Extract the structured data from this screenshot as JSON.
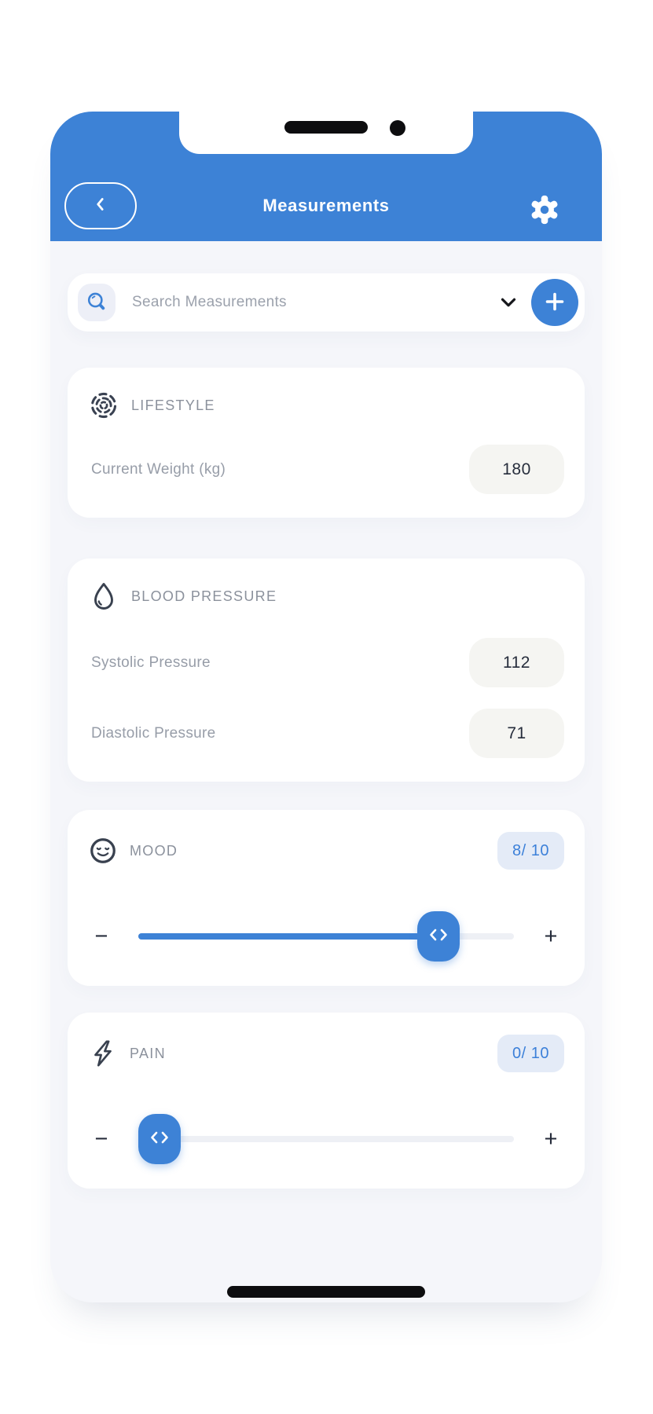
{
  "header": {
    "title": "Measurements"
  },
  "search": {
    "placeholder": "Search Measurements"
  },
  "cards": {
    "lifestyle": {
      "title": "LIFESTYLE",
      "rows": [
        {
          "label": "Current Weight (kg)",
          "value": "180"
        }
      ]
    },
    "blood_pressure": {
      "title": "BLOOD PRESSURE",
      "rows": [
        {
          "label": "Systolic Pressure",
          "value": "112"
        },
        {
          "label": "Diastolic Pressure",
          "value": "71"
        }
      ]
    },
    "mood": {
      "title": "MOOD",
      "score": "8/ 10",
      "value": 8,
      "max": 10
    },
    "pain": {
      "title": "PAIN",
      "score": "0/ 10",
      "value": 0,
      "max": 10
    }
  },
  "slider_controls": {
    "decrease": "−",
    "increase": "+"
  },
  "colors": {
    "accent": "#3d82d6",
    "screen_bg": "#f5f6fa",
    "badge_bg": "#e4ebf7",
    "badge_text": "#3c80d9",
    "pill_bg": "#f5f5f2"
  }
}
